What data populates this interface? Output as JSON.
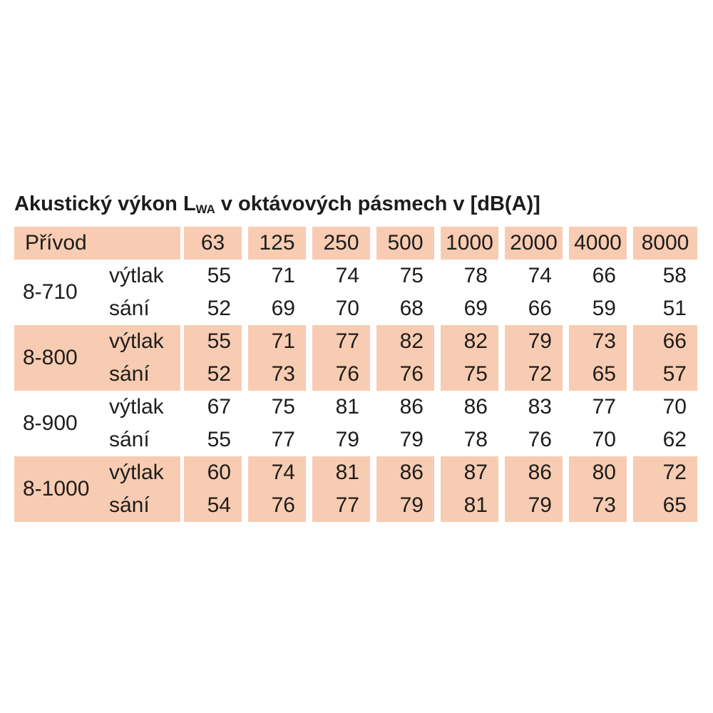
{
  "title": {
    "prefix": "Akustický výkon L",
    "subscript": "WA",
    "suffix": " v oktávových pásmech v [dB(A)]"
  },
  "colors": {
    "row_shade": "#f8ccb2",
    "text": "#1d1d1b",
    "background": "#ffffff"
  },
  "table": {
    "header": {
      "first": "Přívod",
      "bands": [
        "63",
        "125",
        "250",
        "500",
        "1000",
        "2000",
        "4000",
        "8000"
      ]
    },
    "groups": [
      {
        "model": "8-710",
        "shaded": false,
        "rows": [
          {
            "label": "výtlak",
            "values": [
              55,
              71,
              74,
              75,
              78,
              74,
              66,
              58
            ]
          },
          {
            "label": "sání",
            "values": [
              52,
              69,
              70,
              68,
              69,
              66,
              59,
              51
            ]
          }
        ]
      },
      {
        "model": "8-800",
        "shaded": true,
        "rows": [
          {
            "label": "výtlak",
            "values": [
              55,
              71,
              77,
              82,
              82,
              79,
              73,
              66
            ]
          },
          {
            "label": "sání",
            "values": [
              52,
              73,
              76,
              76,
              75,
              72,
              65,
              57
            ]
          }
        ]
      },
      {
        "model": "8-900",
        "shaded": false,
        "rows": [
          {
            "label": "výtlak",
            "values": [
              67,
              75,
              81,
              86,
              86,
              83,
              77,
              70
            ]
          },
          {
            "label": "sání",
            "values": [
              55,
              77,
              79,
              79,
              78,
              76,
              70,
              62
            ]
          }
        ]
      },
      {
        "model": "8-1000",
        "shaded": true,
        "rows": [
          {
            "label": "výtlak",
            "values": [
              60,
              74,
              81,
              86,
              87,
              86,
              80,
              72
            ]
          },
          {
            "label": "sání",
            "values": [
              54,
              76,
              77,
              79,
              81,
              79,
              73,
              65
            ]
          }
        ]
      }
    ]
  },
  "chart_data": {
    "type": "table",
    "title": "Akustický výkon LWA v oktávových pásmech v [dB(A)]",
    "categories": [
      "63",
      "125",
      "250",
      "500",
      "1000",
      "2000",
      "4000",
      "8000"
    ],
    "series": [
      {
        "name": "8-710 výtlak",
        "values": [
          55,
          71,
          74,
          75,
          78,
          74,
          66,
          58
        ]
      },
      {
        "name": "8-710 sání",
        "values": [
          52,
          69,
          70,
          68,
          69,
          66,
          59,
          51
        ]
      },
      {
        "name": "8-800 výtlak",
        "values": [
          55,
          71,
          77,
          82,
          82,
          79,
          73,
          66
        ]
      },
      {
        "name": "8-800 sání",
        "values": [
          52,
          73,
          76,
          76,
          75,
          72,
          65,
          57
        ]
      },
      {
        "name": "8-900 výtlak",
        "values": [
          67,
          75,
          81,
          86,
          86,
          83,
          77,
          70
        ]
      },
      {
        "name": "8-900 sání",
        "values": [
          55,
          77,
          79,
          79,
          78,
          76,
          70,
          62
        ]
      },
      {
        "name": "8-1000 výtlak",
        "values": [
          60,
          74,
          81,
          86,
          87,
          86,
          80,
          72
        ]
      },
      {
        "name": "8-1000 sání",
        "values": [
          54,
          76,
          77,
          79,
          81,
          79,
          73,
          65
        ]
      }
    ]
  }
}
